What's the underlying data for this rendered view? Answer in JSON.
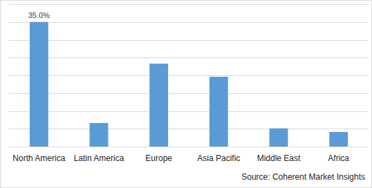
{
  "chart_data": {
    "type": "bar",
    "categories": [
      "North America",
      "Latin America",
      "Europe",
      "Asia Pacific",
      "Middle East",
      "Africa"
    ],
    "values": [
      35,
      6.6,
      23.3,
      19.6,
      5.1,
      4.1
    ],
    "value_labels": [
      "35.0%",
      null,
      null,
      null,
      null,
      null
    ],
    "data_labels": true,
    "color": "#5b9bd5",
    "ylim": [
      0,
      40
    ],
    "yticks": [
      0,
      5,
      10,
      15,
      20,
      25,
      30,
      35,
      40
    ],
    "grid": true,
    "tick_labels": "x",
    "source": "Source: Coherent Market Insights"
  }
}
